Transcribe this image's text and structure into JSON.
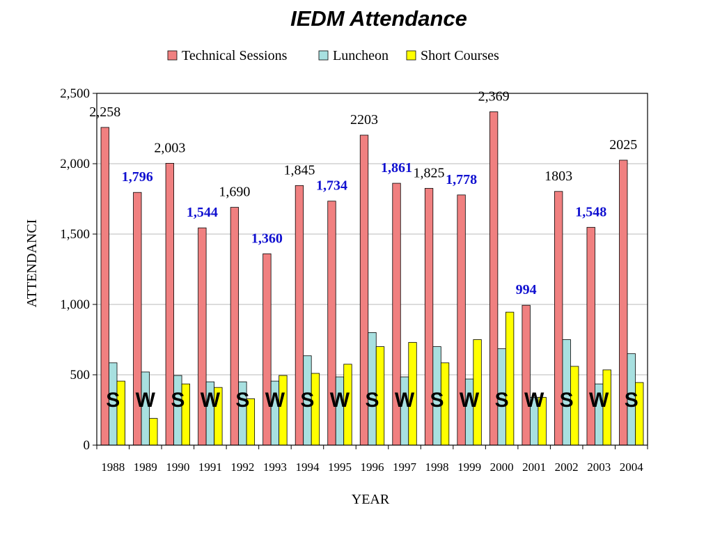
{
  "chart_data": {
    "type": "bar",
    "title": "IEDM Attendance",
    "xlabel": "YEAR",
    "ylabel": "ATTENDANCI",
    "ylim": [
      0,
      2500
    ],
    "yticks": [
      0,
      500,
      1000,
      1500,
      2000,
      2500
    ],
    "ytick_labels": [
      "0",
      "500",
      "1,000",
      "1,500",
      "2,000",
      "2,500"
    ],
    "grid": true,
    "legend_position": "top",
    "categories": [
      "1988",
      "1989",
      "1990",
      "1991",
      "1992",
      "1993",
      "1994",
      "1995",
      "1996",
      "1997",
      "1998",
      "1999",
      "2000",
      "2001",
      "2002",
      "2003",
      "2004"
    ],
    "series": [
      {
        "name": "Technical Sessions",
        "color": "#f08080",
        "values": [
          2258,
          1796,
          2003,
          1544,
          1690,
          1360,
          1845,
          1734,
          2203,
          1861,
          1825,
          1778,
          2369,
          994,
          1803,
          1548,
          2025
        ]
      },
      {
        "name": "Luncheon",
        "color": "#a8e0e0",
        "values": [
          585,
          520,
          495,
          450,
          450,
          455,
          635,
          485,
          800,
          485,
          700,
          470,
          685,
          340,
          750,
          435,
          650
        ]
      },
      {
        "name": "Short Courses",
        "color": "#ffff00",
        "values": [
          455,
          190,
          435,
          410,
          330,
          495,
          510,
          575,
          700,
          730,
          585,
          750,
          945,
          340,
          560,
          535,
          445
        ]
      }
    ],
    "data_labels": [
      "2,258",
      "1,796",
      "2,003",
      "1,544",
      "1,690",
      "1,360",
      "1,845",
      "1,734",
      "2203",
      "1,861",
      "1,825",
      "1,778",
      "2,369",
      "994",
      "1803",
      "1,548",
      "2025"
    ],
    "data_label_styles": [
      "black",
      "blue",
      "black",
      "blue",
      "black",
      "blue",
      "black",
      "blue",
      "black",
      "blue",
      "black",
      "blue",
      "black",
      "blue",
      "black",
      "blue",
      "black"
    ],
    "season_markers": [
      "S",
      "W",
      "S",
      "W",
      "S",
      "W",
      "S",
      "W",
      "S",
      "W",
      "S",
      "W",
      "S",
      "W",
      "S",
      "W",
      "S"
    ]
  }
}
